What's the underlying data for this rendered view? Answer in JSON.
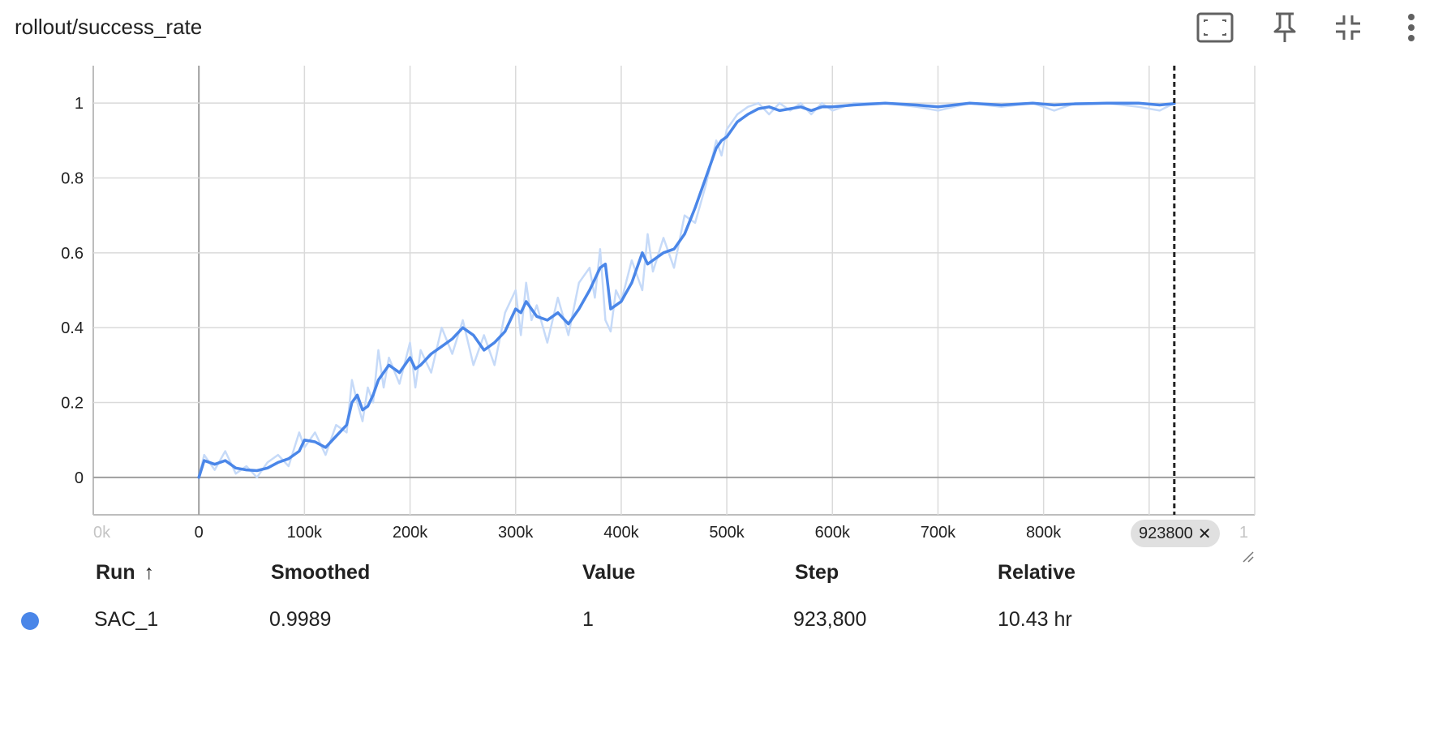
{
  "card": {
    "title": "rollout/success_rate",
    "toolbar": [
      {
        "icon": "fit-domain-icon",
        "label": "Fit domain to data"
      },
      {
        "icon": "pin-icon",
        "label": "Pin card"
      },
      {
        "icon": "collapse-icon",
        "label": "Collapse"
      },
      {
        "icon": "more-vert-icon",
        "label": "More options"
      }
    ]
  },
  "colors": {
    "series_smoothed": "#4a86e8",
    "series_raw": "#c6daf8",
    "grid": "#dadada",
    "axis_zero": "#9e9e9e",
    "run_dot": "#4a86e8",
    "cursor_line": "#212121"
  },
  "chart_data": {
    "type": "line",
    "title": "rollout/success_rate",
    "xlabel": "",
    "ylabel": "",
    "xlim": [
      -100000,
      1000000
    ],
    "ylim": [
      -0.1,
      1.1
    ],
    "x_ticks": [
      0,
      100000,
      200000,
      300000,
      400000,
      500000,
      600000,
      700000,
      800000,
      900000
    ],
    "x_tick_labels": [
      "0",
      "100k",
      "200k",
      "300k",
      "400k",
      "500k",
      "600k",
      "700k",
      "800k",
      ""
    ],
    "x_tick_labels_edge": {
      "left": "0k",
      "right": "1"
    },
    "y_ticks": [
      0,
      0.2,
      0.4,
      0.6,
      0.8,
      1
    ],
    "y_tick_labels": [
      "0",
      "0.2",
      "0.4",
      "0.6",
      "0.8",
      "1"
    ],
    "grid": true,
    "cursor_step": 923800,
    "cursor_label": "923800",
    "series": [
      {
        "name": "SAC_1",
        "kind": "smoothed",
        "x": [
          0,
          5000,
          15000,
          25000,
          35000,
          45000,
          55000,
          65000,
          75000,
          85000,
          95000,
          100000,
          110000,
          120000,
          130000,
          140000,
          145000,
          150000,
          155000,
          160000,
          165000,
          170000,
          180000,
          190000,
          200000,
          205000,
          210000,
          220000,
          230000,
          240000,
          250000,
          260000,
          270000,
          280000,
          290000,
          300000,
          305000,
          310000,
          320000,
          330000,
          340000,
          350000,
          360000,
          370000,
          375000,
          380000,
          385000,
          390000,
          400000,
          410000,
          420000,
          425000,
          430000,
          440000,
          450000,
          460000,
          470000,
          480000,
          490000,
          495000,
          500000,
          505000,
          510000,
          520000,
          530000,
          540000,
          550000,
          560000,
          570000,
          580000,
          590000,
          600000,
          620000,
          650000,
          680000,
          700000,
          730000,
          760000,
          790000,
          810000,
          830000,
          860000,
          890000,
          910000,
          923800
        ],
        "y": [
          0.0,
          0.045,
          0.035,
          0.045,
          0.025,
          0.02,
          0.018,
          0.025,
          0.04,
          0.05,
          0.07,
          0.1,
          0.095,
          0.08,
          0.11,
          0.14,
          0.2,
          0.22,
          0.18,
          0.19,
          0.22,
          0.26,
          0.3,
          0.28,
          0.32,
          0.29,
          0.3,
          0.33,
          0.35,
          0.37,
          0.4,
          0.38,
          0.34,
          0.36,
          0.39,
          0.45,
          0.44,
          0.47,
          0.43,
          0.42,
          0.44,
          0.41,
          0.45,
          0.5,
          0.53,
          0.56,
          0.57,
          0.45,
          0.47,
          0.52,
          0.6,
          0.57,
          0.58,
          0.6,
          0.61,
          0.65,
          0.72,
          0.8,
          0.88,
          0.9,
          0.91,
          0.93,
          0.95,
          0.97,
          0.985,
          0.99,
          0.98,
          0.985,
          0.99,
          0.98,
          0.99,
          0.99,
          0.995,
          1.0,
          0.995,
          0.99,
          1.0,
          0.995,
          1.0,
          0.995,
          0.998,
          1.0,
          1.0,
          0.995,
          0.9989
        ]
      },
      {
        "name": "SAC_1",
        "kind": "raw",
        "x": [
          0,
          5000,
          15000,
          25000,
          35000,
          45000,
          55000,
          65000,
          75000,
          85000,
          95000,
          100000,
          110000,
          120000,
          130000,
          140000,
          145000,
          150000,
          155000,
          160000,
          165000,
          170000,
          175000,
          180000,
          190000,
          200000,
          205000,
          210000,
          220000,
          230000,
          240000,
          250000,
          260000,
          270000,
          280000,
          290000,
          300000,
          305000,
          310000,
          315000,
          320000,
          330000,
          340000,
          350000,
          360000,
          370000,
          375000,
          380000,
          385000,
          390000,
          395000,
          400000,
          410000,
          420000,
          425000,
          430000,
          440000,
          450000,
          460000,
          470000,
          480000,
          490000,
          495000,
          500000,
          505000,
          510000,
          520000,
          530000,
          540000,
          550000,
          560000,
          570000,
          580000,
          590000,
          600000,
          620000,
          650000,
          680000,
          700000,
          730000,
          760000,
          790000,
          810000,
          830000,
          860000,
          890000,
          910000,
          923800
        ],
        "y": [
          0.0,
          0.06,
          0.02,
          0.07,
          0.01,
          0.03,
          0.0,
          0.04,
          0.06,
          0.03,
          0.12,
          0.08,
          0.12,
          0.06,
          0.14,
          0.12,
          0.26,
          0.2,
          0.15,
          0.24,
          0.2,
          0.34,
          0.24,
          0.32,
          0.25,
          0.36,
          0.24,
          0.34,
          0.28,
          0.4,
          0.33,
          0.42,
          0.3,
          0.38,
          0.3,
          0.44,
          0.5,
          0.38,
          0.52,
          0.42,
          0.46,
          0.36,
          0.48,
          0.38,
          0.52,
          0.56,
          0.48,
          0.61,
          0.42,
          0.39,
          0.5,
          0.47,
          0.58,
          0.5,
          0.65,
          0.55,
          0.64,
          0.56,
          0.7,
          0.68,
          0.78,
          0.9,
          0.86,
          0.93,
          0.95,
          0.97,
          0.99,
          1.0,
          0.97,
          1.0,
          0.98,
          1.0,
          0.97,
          1.0,
          0.98,
          1.0,
          1.0,
          0.99,
          0.98,
          1.0,
          0.99,
          1.0,
          0.98,
          1.0,
          1.0,
          0.99,
          0.98,
          1.0
        ]
      }
    ]
  },
  "table": {
    "headers": [
      "Run",
      "Smoothed",
      "Value",
      "Step",
      "Relative"
    ],
    "sort_indicator": "↑",
    "rows": [
      {
        "run": "SAC_1",
        "smoothed": "0.9989",
        "value": "1",
        "step": "923,800",
        "relative": "10.43 hr"
      }
    ]
  }
}
